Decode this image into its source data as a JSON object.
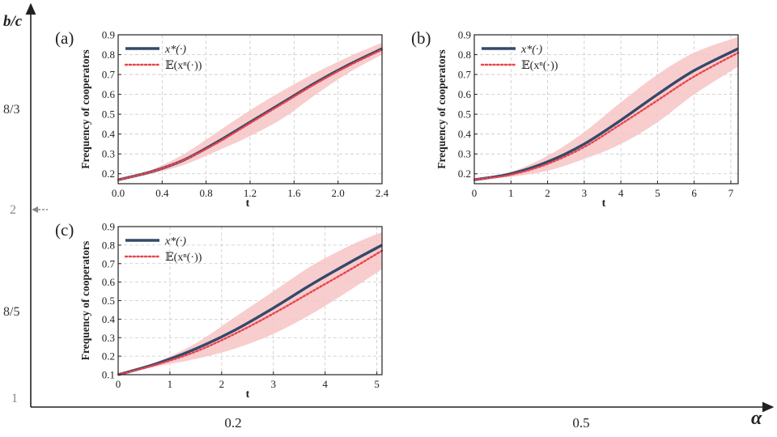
{
  "figure": {
    "y_axis_label": "b/c",
    "x_axis_label": "α",
    "y_levels": [
      {
        "label": "8/3",
        "color": "#333333"
      },
      {
        "label": "2",
        "color": "#8a8a8a",
        "marker": "arrow-left"
      },
      {
        "label": "8/5",
        "color": "#333333"
      },
      {
        "label": "1",
        "color": "#8a8a8a"
      }
    ],
    "x_levels": [
      "0.2",
      "0.5"
    ]
  },
  "colors": {
    "mean_line": "#34496a",
    "expect_line": "#e8454d",
    "band": "#f7c4c6",
    "grid": "#c8c8c8",
    "axis": "#222222"
  },
  "chart_data": [
    {
      "type": "line",
      "panel_label": "(a)",
      "xlabel": "t",
      "ylabel": "Frequency of cooperators",
      "xlim": [
        0,
        2.4
      ],
      "ylim": [
        0.15,
        0.9
      ],
      "xticks": [
        0,
        0.4,
        0.8,
        1.2,
        1.6,
        2.0,
        2.4
      ],
      "xtick_labels": [
        "0.0",
        "0.4",
        "0.8",
        "1.2",
        "1.6",
        "2.0",
        "2.4"
      ],
      "yticks": [
        0.2,
        0.3,
        0.4,
        0.5,
        0.6,
        0.7,
        0.8,
        0.9
      ],
      "ytick_labels": [
        "0.2",
        "0.3",
        "0.4",
        "0.5",
        "0.6",
        "0.7",
        "0.8",
        "0.9"
      ],
      "legend": [
        "x*(·)",
        "𝔼(xⁿ(·))"
      ],
      "x": [
        0,
        0.3,
        0.6,
        0.9,
        1.2,
        1.5,
        1.8,
        2.1,
        2.4
      ],
      "series": [
        {
          "name": "x*(·)",
          "style": "solid",
          "values": [
            0.17,
            0.21,
            0.27,
            0.36,
            0.46,
            0.56,
            0.66,
            0.75,
            0.83
          ]
        },
        {
          "name": "𝔼(xⁿ(·))",
          "style": "dotted",
          "values": [
            0.17,
            0.21,
            0.27,
            0.355,
            0.455,
            0.555,
            0.655,
            0.745,
            0.825
          ]
        }
      ],
      "band": {
        "lower": [
          0.17,
          0.2,
          0.245,
          0.315,
          0.39,
          0.48,
          0.6,
          0.71,
          0.8
        ],
        "upper": [
          0.17,
          0.22,
          0.3,
          0.41,
          0.52,
          0.62,
          0.71,
          0.79,
          0.86
        ]
      }
    },
    {
      "type": "line",
      "panel_label": "(b)",
      "xlabel": "t",
      "ylabel": "Frequency of cooperators",
      "xlim": [
        0,
        7.2
      ],
      "ylim": [
        0.15,
        0.9
      ],
      "xticks": [
        0,
        1,
        2,
        3,
        4,
        5,
        6,
        7
      ],
      "xtick_labels": [
        "0",
        "1",
        "2",
        "3",
        "4",
        "5",
        "6",
        "7"
      ],
      "yticks": [
        0.2,
        0.3,
        0.4,
        0.5,
        0.6,
        0.7,
        0.8,
        0.9
      ],
      "ytick_labels": [
        "0.2",
        "0.3",
        "0.4",
        "0.5",
        "0.6",
        "0.7",
        "0.8",
        "0.9"
      ],
      "legend": [
        "x*(·)",
        "𝔼(xⁿ(·))"
      ],
      "x": [
        0,
        1,
        2,
        3,
        4,
        5,
        6,
        7.2
      ],
      "series": [
        {
          "name": "x*(·)",
          "style": "solid",
          "values": [
            0.17,
            0.2,
            0.26,
            0.35,
            0.47,
            0.6,
            0.72,
            0.83
          ]
        },
        {
          "name": "𝔼(xⁿ(·))",
          "style": "dotted",
          "values": [
            0.17,
            0.195,
            0.25,
            0.335,
            0.45,
            0.57,
            0.69,
            0.81
          ]
        }
      ],
      "band": {
        "lower": [
          0.17,
          0.185,
          0.215,
          0.275,
          0.35,
          0.46,
          0.6,
          0.74
        ],
        "upper": [
          0.17,
          0.21,
          0.29,
          0.41,
          0.56,
          0.7,
          0.81,
          0.89
        ]
      }
    },
    {
      "type": "line",
      "panel_label": "(c)",
      "xlabel": "t",
      "ylabel": "Frequency of cooperators",
      "xlim": [
        0,
        5.1
      ],
      "ylim": [
        0.1,
        0.9
      ],
      "xticks": [
        0,
        1,
        2,
        3,
        4,
        5
      ],
      "xtick_labels": [
        "0",
        "1",
        "2",
        "3",
        "4",
        "5"
      ],
      "yticks": [
        0.1,
        0.2,
        0.3,
        0.4,
        0.5,
        0.6,
        0.7,
        0.8,
        0.9
      ],
      "ytick_labels": [
        "0.1",
        "0.2",
        "0.3",
        "0.4",
        "0.5",
        "0.6",
        "0.7",
        "0.8",
        "0.9"
      ],
      "legend": [
        "x*(·)",
        "𝔼(xⁿ(·))"
      ],
      "x": [
        0,
        0.75,
        1.5,
        2.25,
        3,
        3.75,
        4.5,
        5.1
      ],
      "series": [
        {
          "name": "x*(·)",
          "style": "solid",
          "values": [
            0.1,
            0.16,
            0.24,
            0.34,
            0.46,
            0.59,
            0.71,
            0.8
          ]
        },
        {
          "name": "𝔼(xⁿ(·))",
          "style": "dotted",
          "values": [
            0.1,
            0.155,
            0.225,
            0.32,
            0.43,
            0.55,
            0.67,
            0.77
          ]
        }
      ],
      "band": {
        "lower": [
          0.1,
          0.145,
          0.185,
          0.24,
          0.32,
          0.43,
          0.56,
          0.67
        ],
        "upper": [
          0.1,
          0.17,
          0.27,
          0.41,
          0.55,
          0.69,
          0.8,
          0.87
        ]
      }
    }
  ]
}
